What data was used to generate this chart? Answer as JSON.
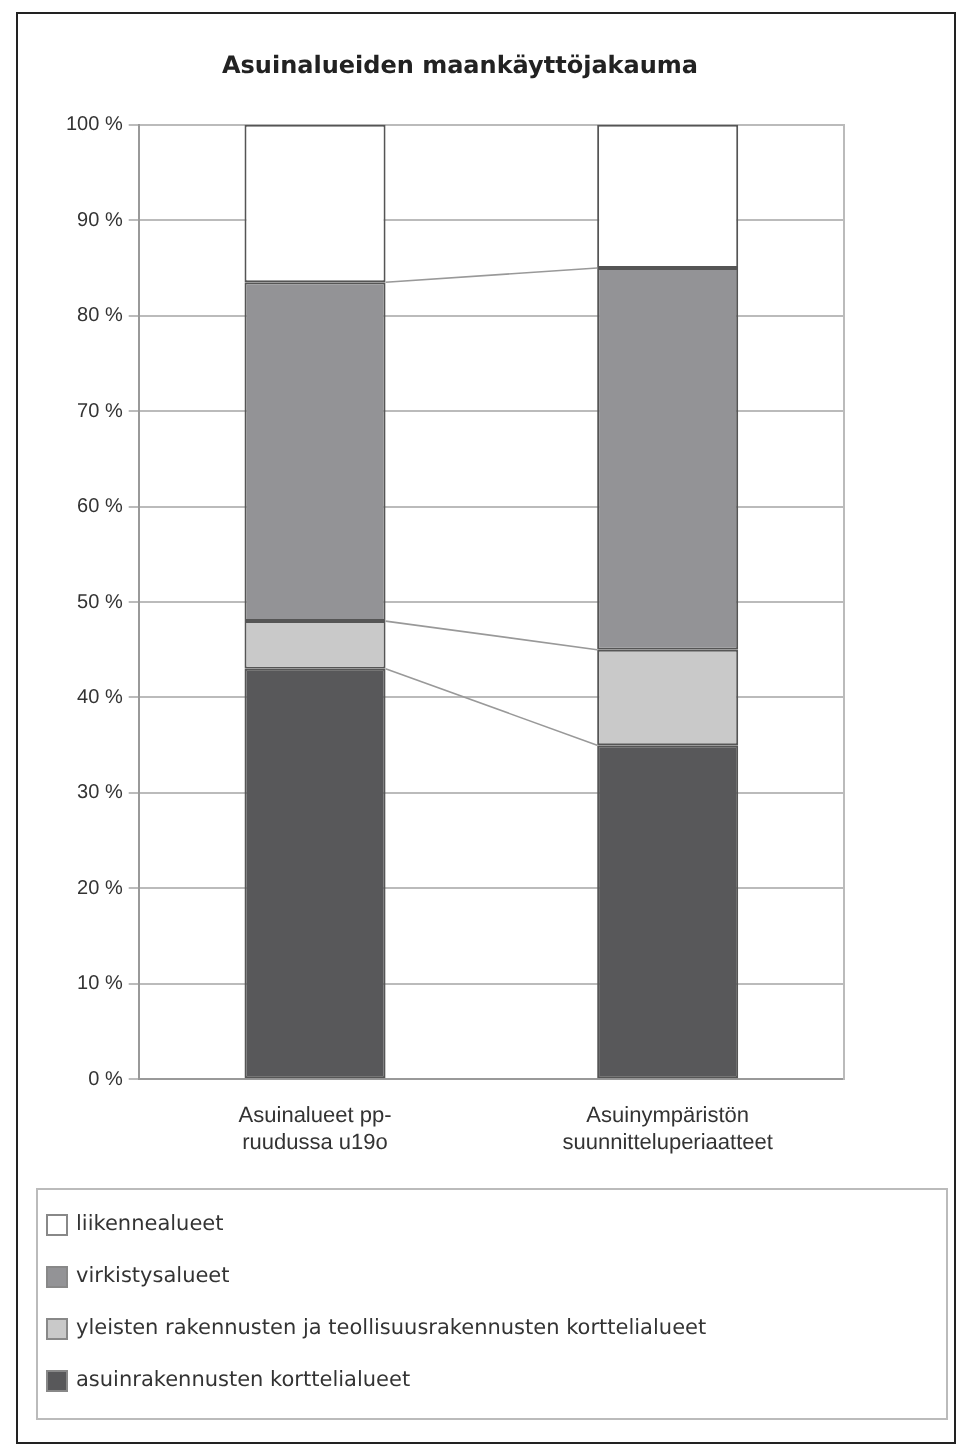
{
  "chart_data": {
    "type": "bar",
    "title": "Asuinalueiden maankäyttöjakauma",
    "stacked": true,
    "categories": [
      "Asuinalueet pp-ruudussa u19o",
      "Asuinympäristön suunnitteluperiaatteet"
    ],
    "series": [
      {
        "name": "asuinrakennusten korttelialueet",
        "color": "#58585a",
        "values": [
          43,
          35
        ]
      },
      {
        "name": "yleisten rakennusten ja teollisuusrakennusten korttelialueet",
        "color": "#c9c9c9",
        "values": [
          5,
          10
        ]
      },
      {
        "name": "virkistysalueet",
        "color": "#939396",
        "values": [
          35.5,
          40
        ]
      },
      {
        "name": "liikennealueet",
        "color": "#ffffff",
        "values": [
          16.5,
          15
        ]
      }
    ],
    "ylim": [
      0,
      100
    ],
    "yticks": [
      {
        "value": 0,
        "label": "0 %"
      },
      {
        "value": 10,
        "label": "10 %"
      },
      {
        "value": 20,
        "label": "20 %"
      },
      {
        "value": 30,
        "label": "30 %"
      },
      {
        "value": 40,
        "label": "40 %"
      },
      {
        "value": 50,
        "label": "50 %"
      },
      {
        "value": 60,
        "label": "60 %"
      },
      {
        "value": 70,
        "label": "70 %"
      },
      {
        "value": 80,
        "label": "80 %"
      },
      {
        "value": 90,
        "label": "90 %"
      },
      {
        "value": 100,
        "label": "100 %"
      }
    ],
    "grid": "y",
    "legend": "bottom"
  }
}
